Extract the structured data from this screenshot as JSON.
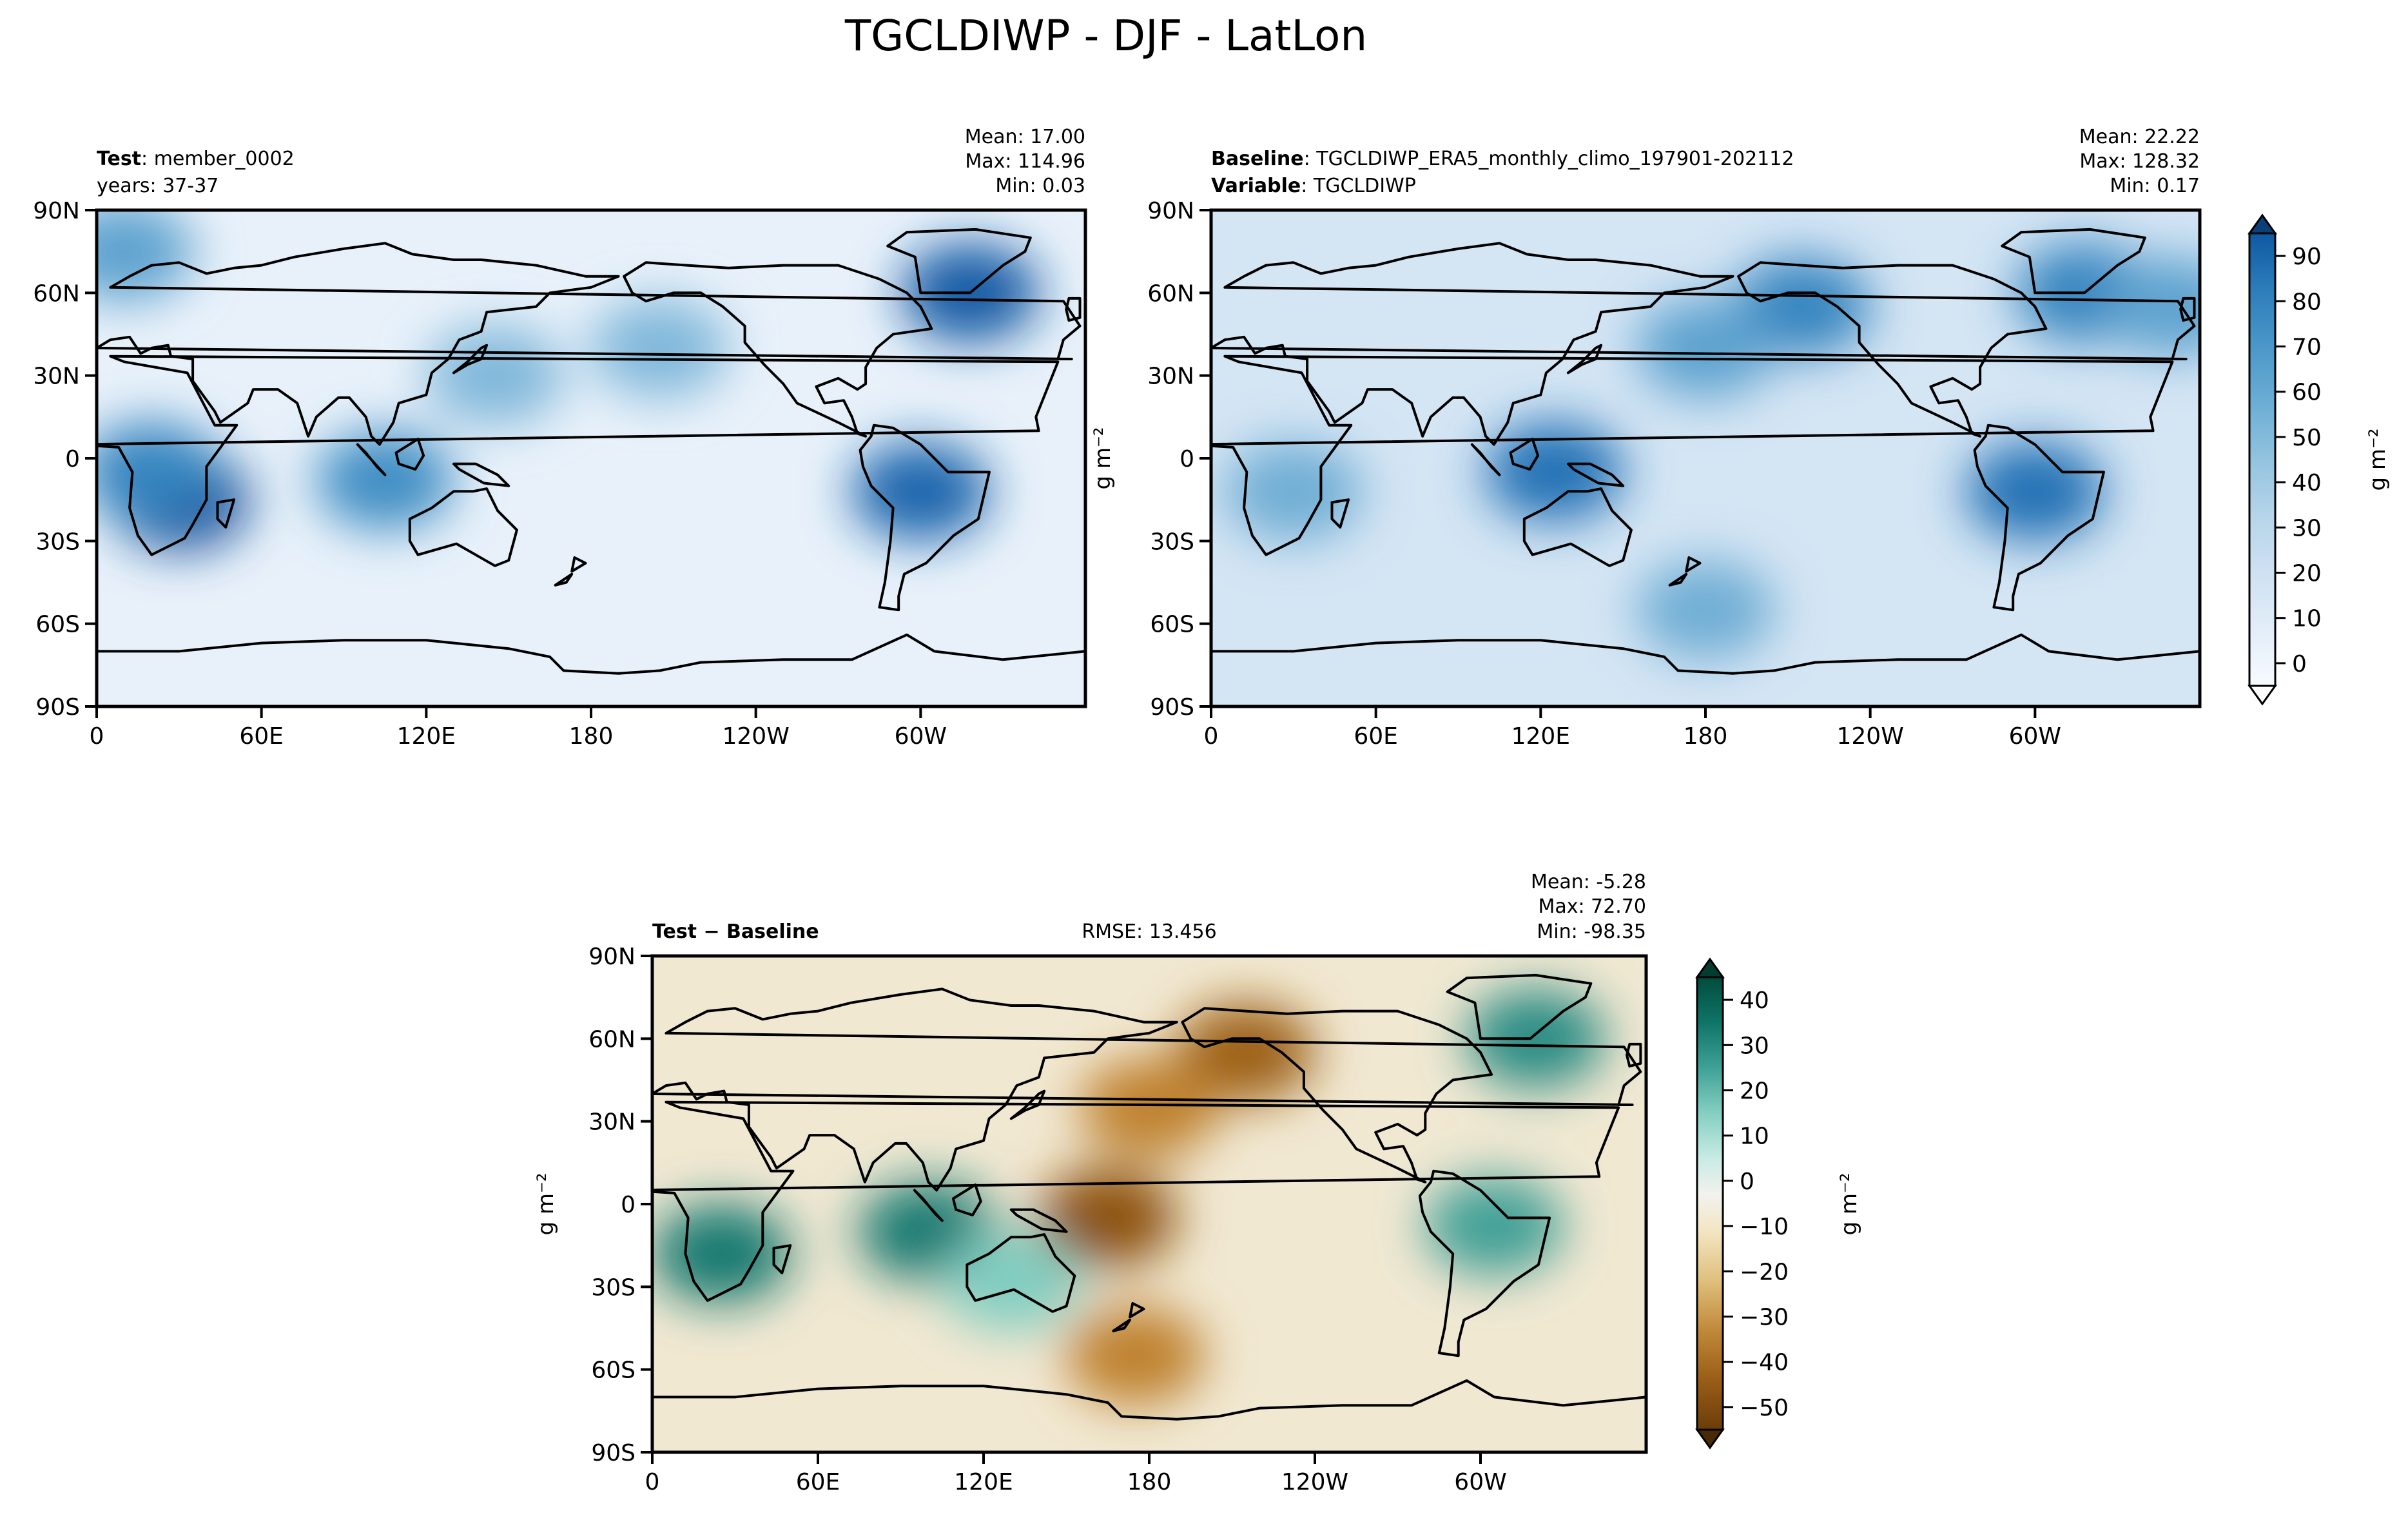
{
  "figure": {
    "title": "TGCLDIWP - DJF - LatLon"
  },
  "chart_data": [
    {
      "type": "heatmap",
      "panel": "test",
      "label_bold": "Test",
      "label_value": "member_0002",
      "label_line2": "years: 37-37",
      "stats": {
        "mean": "Mean: 17.00",
        "max": "Max: 114.96",
        "min": "Min:  0.03"
      },
      "x_ticks": [
        "0",
        "60E",
        "120E",
        "180",
        "120W",
        "60W"
      ],
      "y_ticks": [
        "90N",
        "60N",
        "30N",
        "0",
        "30S",
        "60S",
        "90S"
      ],
      "xlim": [
        0,
        360
      ],
      "ylim": [
        -90,
        90
      ],
      "colormap": "Blues",
      "features": [
        {
          "lon": 30,
          "lat": -15,
          "value": 90
        },
        {
          "lon": 20,
          "lat": -5,
          "value": 60
        },
        {
          "lon": 105,
          "lat": -8,
          "value": 55
        },
        {
          "lon": 300,
          "lat": -12,
          "value": 75
        },
        {
          "lon": 318,
          "lat": 60,
          "value": 80
        },
        {
          "lon": 10,
          "lat": 75,
          "value": 45
        },
        {
          "lon": 145,
          "lat": 30,
          "value": 35
        },
        {
          "lon": 205,
          "lat": 40,
          "value": 35
        }
      ]
    },
    {
      "type": "heatmap",
      "panel": "baseline",
      "label_bold": "Baseline",
      "label_value": "TGCLDIWP_ERA5_monthly_climo_197901-202112",
      "label2_bold": "Variable",
      "label2_value": "TGCLDIWP",
      "stats": {
        "mean": "Mean: 22.22",
        "max": "Max: 128.32",
        "min": "Min:  0.17"
      },
      "x_ticks": [
        "0",
        "60E",
        "120E",
        "180",
        "120W",
        "60W"
      ],
      "y_ticks": [
        "90N",
        "60N",
        "30N",
        "0",
        "30S",
        "60S",
        "90S"
      ],
      "xlim": [
        0,
        360
      ],
      "ylim": [
        -90,
        90
      ],
      "colormap": "Blues",
      "features": [
        {
          "lon": 125,
          "lat": -5,
          "value": 70
        },
        {
          "lon": 300,
          "lat": -12,
          "value": 70
        },
        {
          "lon": 215,
          "lat": 55,
          "value": 60
        },
        {
          "lon": 318,
          "lat": 60,
          "value": 60
        },
        {
          "lon": 180,
          "lat": 40,
          "value": 45
        },
        {
          "lon": 180,
          "lat": -55,
          "value": 40
        },
        {
          "lon": 30,
          "lat": -12,
          "value": 40
        },
        {
          "lon": 350,
          "lat": 55,
          "value": 45
        }
      ],
      "colorbar": {
        "ticks": [
          "0",
          "10",
          "20",
          "30",
          "40",
          "50",
          "60",
          "70",
          "80",
          "90"
        ],
        "label": "g m⁻²"
      }
    },
    {
      "type": "heatmap",
      "panel": "difference",
      "label_bold": "Test − Baseline",
      "rmse": "RMSE: 13.456",
      "stats": {
        "mean": "Mean: -5.28",
        "max": "Max: 72.70",
        "min": "Min: -98.35"
      },
      "x_ticks": [
        "0",
        "60E",
        "120E",
        "180",
        "120W",
        "60W"
      ],
      "y_ticks": [
        "90N",
        "60N",
        "30N",
        "0",
        "30S",
        "60S",
        "90S"
      ],
      "xlim": [
        0,
        360
      ],
      "ylim": [
        -90,
        90
      ],
      "colormap": "BrBG",
      "features": [
        {
          "lon": 25,
          "lat": -18,
          "value": 40
        },
        {
          "lon": 100,
          "lat": -10,
          "value": 40
        },
        {
          "lon": 165,
          "lat": -5,
          "value": -35
        },
        {
          "lon": 215,
          "lat": 55,
          "value": -30
        },
        {
          "lon": 305,
          "lat": -8,
          "value": 30
        },
        {
          "lon": 320,
          "lat": 60,
          "value": 35
        },
        {
          "lon": 180,
          "lat": 35,
          "value": -20
        },
        {
          "lon": 130,
          "lat": -28,
          "value": 20
        },
        {
          "lon": 175,
          "lat": -55,
          "value": -20
        }
      ],
      "colorbar": {
        "ticks": [
          "40",
          "30",
          "20",
          "10",
          "0",
          "−10",
          "−20",
          "−30",
          "−40",
          "−50"
        ],
        "label": "g m⁻²"
      }
    }
  ]
}
